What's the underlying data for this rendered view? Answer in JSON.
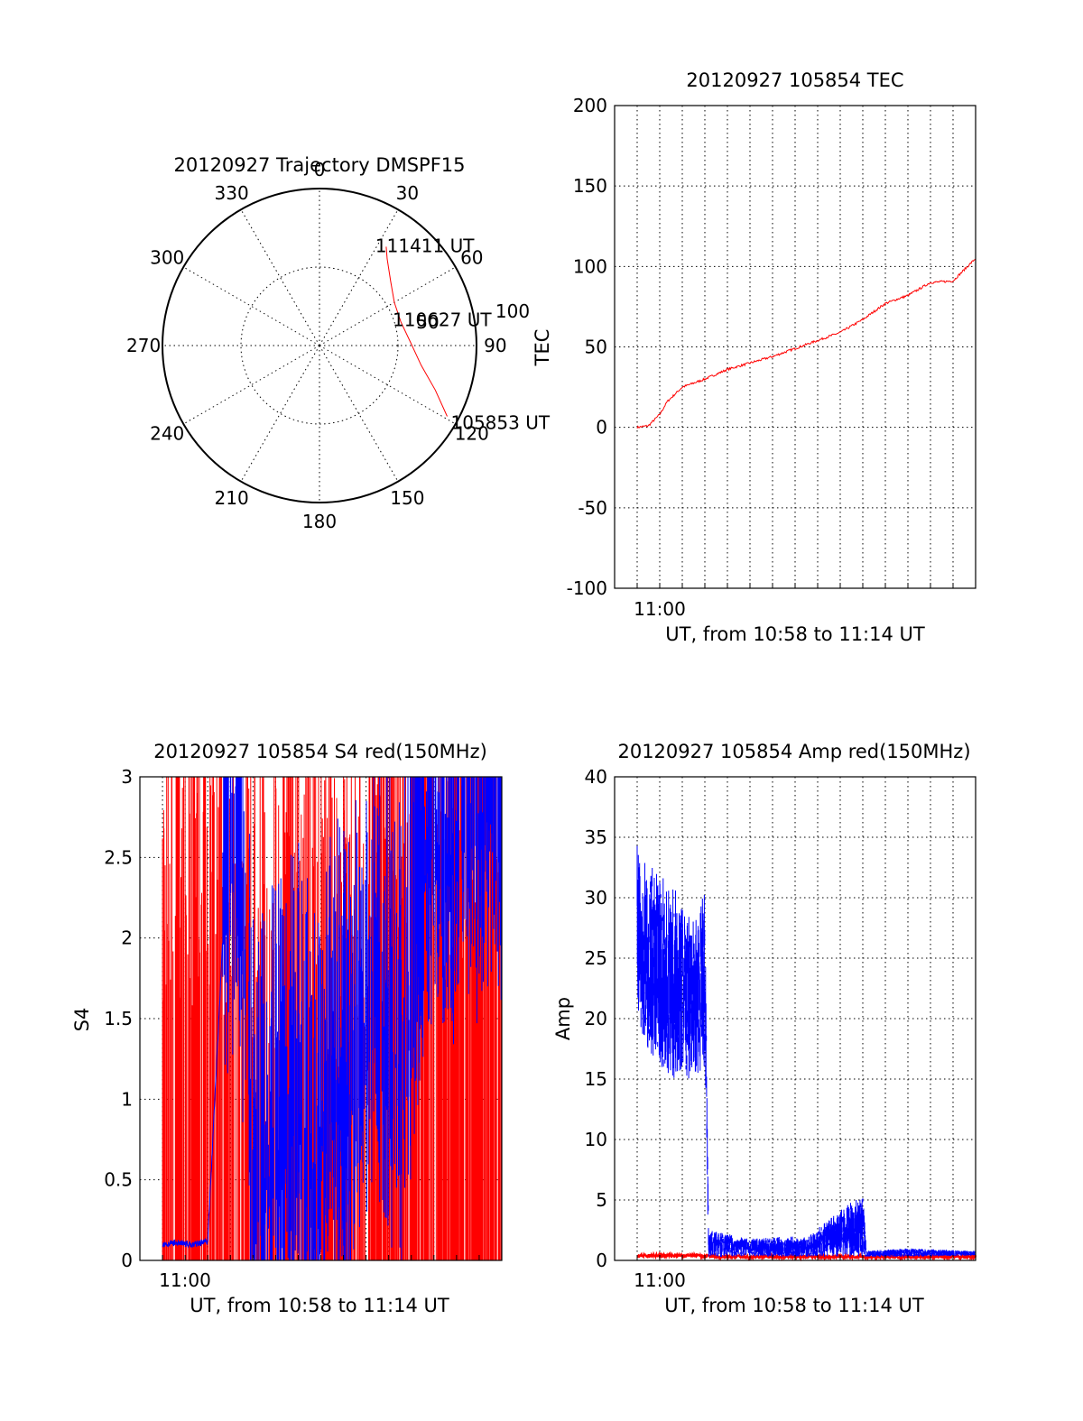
{
  "colors": {
    "red": "#ff0000",
    "blue": "#0000ff",
    "axis": "#000000"
  },
  "chart_data": [
    {
      "type": "polar",
      "title": "20120927 Trajectory DMSPF15",
      "azimuth_labels": [
        "0",
        "30",
        "60",
        "90",
        "120",
        "150",
        "180",
        "210",
        "240",
        "270",
        "300",
        "330"
      ],
      "radial_labels": [
        "50",
        "100"
      ],
      "rlim": [
        0,
        100
      ],
      "grid": true,
      "series": [
        {
          "color": "#ff0000",
          "points": [
            [
              119,
              93
            ],
            [
              111,
              79
            ],
            [
              101,
              66
            ],
            [
              88,
              58
            ],
            [
              74,
              54
            ],
            [
              60,
              55
            ],
            [
              48,
              61
            ],
            [
              38,
              70
            ],
            [
              34,
              76
            ]
          ]
        }
      ],
      "annotations": [
        {
          "text": "105853 UT",
          "az": 119,
          "r": 93
        },
        {
          "text": "110627 UT",
          "az": 72,
          "r": 55
        },
        {
          "text": "111411 UT",
          "az": 34,
          "r": 76
        }
      ]
    },
    {
      "type": "line",
      "title": "20120927 105854 TEC",
      "ylabel": "TEC",
      "xlabel": "UT, from 10:58 to 11:14 UT",
      "x_tick_label": "11:00",
      "xlim": [
        "10:58",
        "11:14"
      ],
      "ylim": [
        -100,
        200
      ],
      "y_ticks": [
        200,
        150,
        100,
        50,
        0,
        -50,
        -100
      ],
      "grid": true,
      "series": [
        {
          "color": "#ff0000",
          "x": [
            "10:59:00",
            "10:59:30",
            "11:00:00",
            "11:00:20",
            "11:01:00",
            "11:02:00",
            "11:03:00",
            "11:04:00",
            "11:05:00",
            "11:06:00",
            "11:07:00",
            "11:08:00",
            "11:09:00",
            "11:10:00",
            "11:11:00",
            "11:12:00",
            "11:13:00",
            "11:14:00"
          ],
          "y": [
            0,
            1,
            8,
            16,
            25,
            30,
            36,
            40,
            44,
            49,
            54,
            59,
            67,
            77,
            82,
            90,
            91,
            105
          ]
        }
      ]
    },
    {
      "type": "line",
      "title": "20120927 105854 S4 red(150MHz)",
      "ylabel": "S4",
      "xlabel": "UT, from 10:58 to 11:14 UT",
      "x_tick_label": "11:00",
      "xlim": [
        "10:58",
        "11:14"
      ],
      "ylim": [
        0,
        3
      ],
      "y_ticks": [
        "3",
        "2.5",
        "2",
        "1.5",
        "1",
        "0.5",
        "0"
      ],
      "grid": true,
      "series": [
        {
          "color": "#ff0000",
          "x": [
            "10:59:00",
            "10:59:40",
            "11:00:40",
            "11:02:00",
            "11:03:40",
            "11:05:00",
            "11:06:20",
            "11:07:20",
            "11:08:00",
            "11:08:40",
            "11:09:20",
            "11:10:20",
            "11:11:40",
            "11:12:40",
            "11:13:20",
            "11:14:00"
          ],
          "y": [
            1.5,
            1.5,
            1.5,
            1.5,
            0.9,
            1.8,
            1.0,
            1.2,
            1.0,
            2.6,
            1.8,
            2.2,
            1.6,
            2.0,
            2.5,
            1.7
          ]
        },
        {
          "color": "#0000ff",
          "x": [
            "10:59:00",
            "10:59:40",
            "11:00:20",
            "11:01:00",
            "11:01:40",
            "11:02:20",
            "11:03:00",
            "11:03:40",
            "11:04:20",
            "11:05:00",
            "11:05:40",
            "11:06:20",
            "11:07:00",
            "11:07:40",
            "11:08:20",
            "11:09:00",
            "11:09:40",
            "11:10:20",
            "11:11:00",
            "11:11:40",
            "11:12:20",
            "11:13:00",
            "11:13:40",
            "11:14:00"
          ],
          "y": [
            0.1,
            0.11,
            0.1,
            0.12,
            2.0,
            2.6,
            0.55,
            0.5,
            0.6,
            0.85,
            0.4,
            1.1,
            0.9,
            1.2,
            1.6,
            1.3,
            1.15,
            2.2,
            2.6,
            2.4,
            2.8,
            2.6,
            2.9,
            2.8
          ]
        }
      ]
    },
    {
      "type": "line",
      "title": "20120927 105854 Amp red(150MHz)",
      "ylabel": "Amp",
      "xlabel": "UT, from 10:58 to 11:14 UT",
      "x_tick_label": "11:00",
      "xlim": [
        "10:58",
        "11:14"
      ],
      "ylim": [
        0,
        40
      ],
      "y_ticks": [
        40,
        35,
        30,
        25,
        20,
        15,
        10,
        5,
        0
      ],
      "grid": true,
      "series": [
        {
          "color": "#ff0000",
          "x": [
            "10:59:00",
            "11:01:30",
            "11:02:30",
            "11:14:00"
          ],
          "y": [
            0.4,
            0.4,
            0.3,
            0.3
          ]
        },
        {
          "color": "#0000ff",
          "x": [
            "10:59:00",
            "10:59:20",
            "10:59:40",
            "11:00:00",
            "11:00:30",
            "11:01:00",
            "11:01:30",
            "11:02:00",
            "11:02:10",
            "11:04:00",
            "11:05:40",
            "11:06:30",
            "11:09:00",
            "11:09:10",
            "11:11:00",
            "11:14:00"
          ],
          "y_low": [
            20,
            18,
            17,
            16,
            15,
            15,
            15,
            16,
            0.3,
            0.3,
            0.3,
            0.3,
            0.3,
            0.3,
            0.3,
            0.4
          ],
          "y_high": [
            35,
            33,
            33,
            32,
            31,
            30,
            28,
            31,
            2.5,
            1.8,
            2.0,
            1.9,
            5.6,
            0.8,
            1.0,
            0.8
          ]
        }
      ]
    }
  ]
}
